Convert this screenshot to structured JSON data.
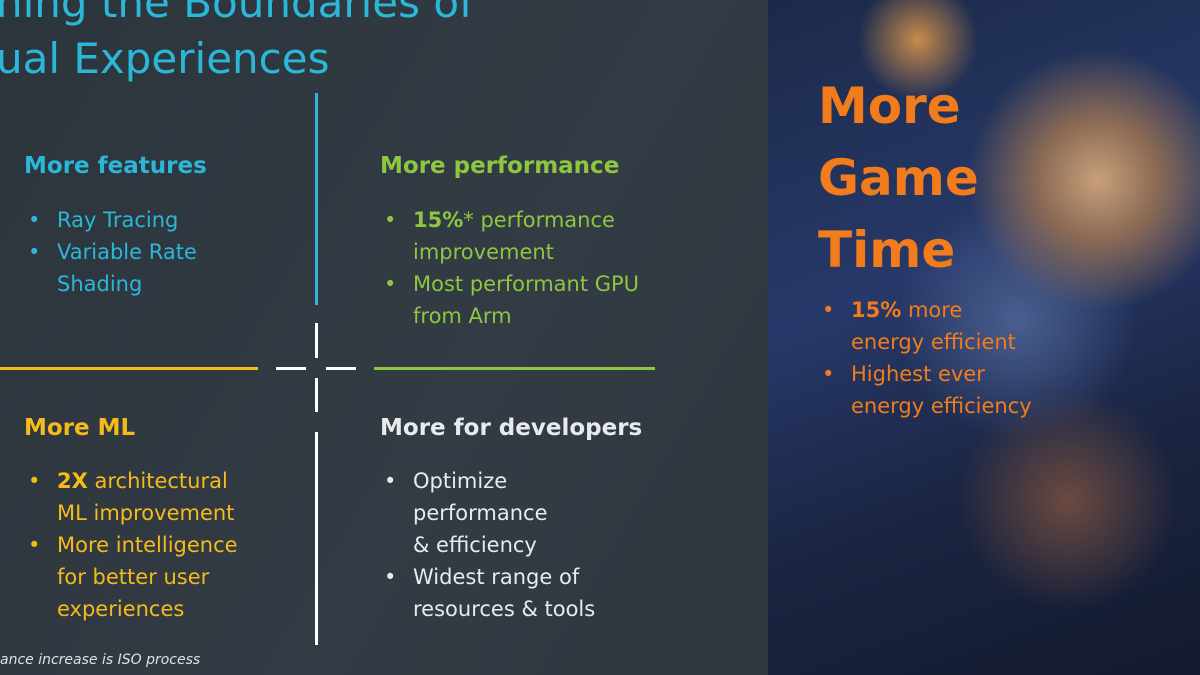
{
  "title": {
    "line1": "hing the Boundaries of",
    "line2": "ual Experiences"
  },
  "quadrants": {
    "features": {
      "heading": "More features",
      "bullets": [
        "Ray Tracing",
        "Variable Rate Shading"
      ],
      "color": "#2bb8d8"
    },
    "performance": {
      "heading": "More performance",
      "b1_bold": "15%",
      "b1_rest": "* performance improvement",
      "b2": "Most performant GPU from Arm",
      "color": "#8dc63f"
    },
    "ml": {
      "heading": "More ML",
      "b1_bold": "2X",
      "b1_rest": " architectural ML improvement",
      "b2": "More intelligence for better user experiences",
      "color": "#f5bb1a"
    },
    "developers": {
      "heading": "More for developers",
      "bullets": [
        "Optimize performance & efficiency",
        "Widest range of resources & tools"
      ],
      "color": "#e8eaec"
    }
  },
  "side": {
    "heading_lines": [
      "More",
      "Game",
      "Time"
    ],
    "b1_bold": "15%",
    "b1_rest": " more energy efficient",
    "b2": "Highest ever energy efficiency",
    "color": "#f27c1c"
  },
  "footnote": "ance increase is ISO process"
}
